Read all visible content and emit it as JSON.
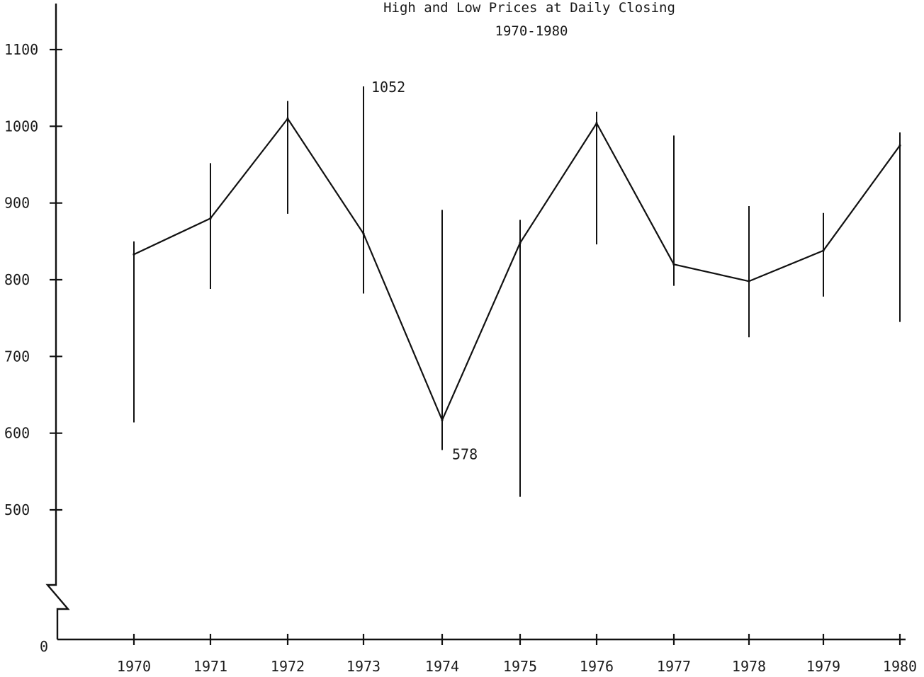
{
  "chart_data": {
    "type": "line",
    "title": "High and Low Prices at Daily Closing",
    "subtitle": "1970-1980",
    "xlabel": "",
    "ylabel": "",
    "x": [
      "1970",
      "1971",
      "1972",
      "1973",
      "1974",
      "1975",
      "1976",
      "1977",
      "1978",
      "1979",
      "1980"
    ],
    "series": [
      {
        "values": [
          833,
          880,
          1010,
          860,
          617,
          848,
          1004,
          820,
          798,
          838,
          975
        ]
      }
    ],
    "ranges": {
      "high": [
        850,
        952,
        1033,
        1052,
        891,
        878,
        1019,
        988,
        896,
        887,
        992
      ],
      "low": [
        614,
        788,
        886,
        782,
        578,
        517,
        846,
        792,
        725,
        778,
        745
      ]
    },
    "y_ticks": [
      "1100",
      "1000",
      "900",
      "800",
      "700",
      "600",
      "500"
    ],
    "y_tick_values": [
      1100,
      1000,
      900,
      800,
      700,
      600,
      500
    ],
    "y_zero_label": "0",
    "ylim": [
      500,
      1100
    ],
    "axis_break": true,
    "grid": false,
    "annotations": [
      {
        "text": "1052",
        "year_index": 3,
        "value": 1052,
        "anchor": "high"
      },
      {
        "text": "578",
        "year_index": 4,
        "value": 578,
        "anchor": "low"
      }
    ]
  }
}
